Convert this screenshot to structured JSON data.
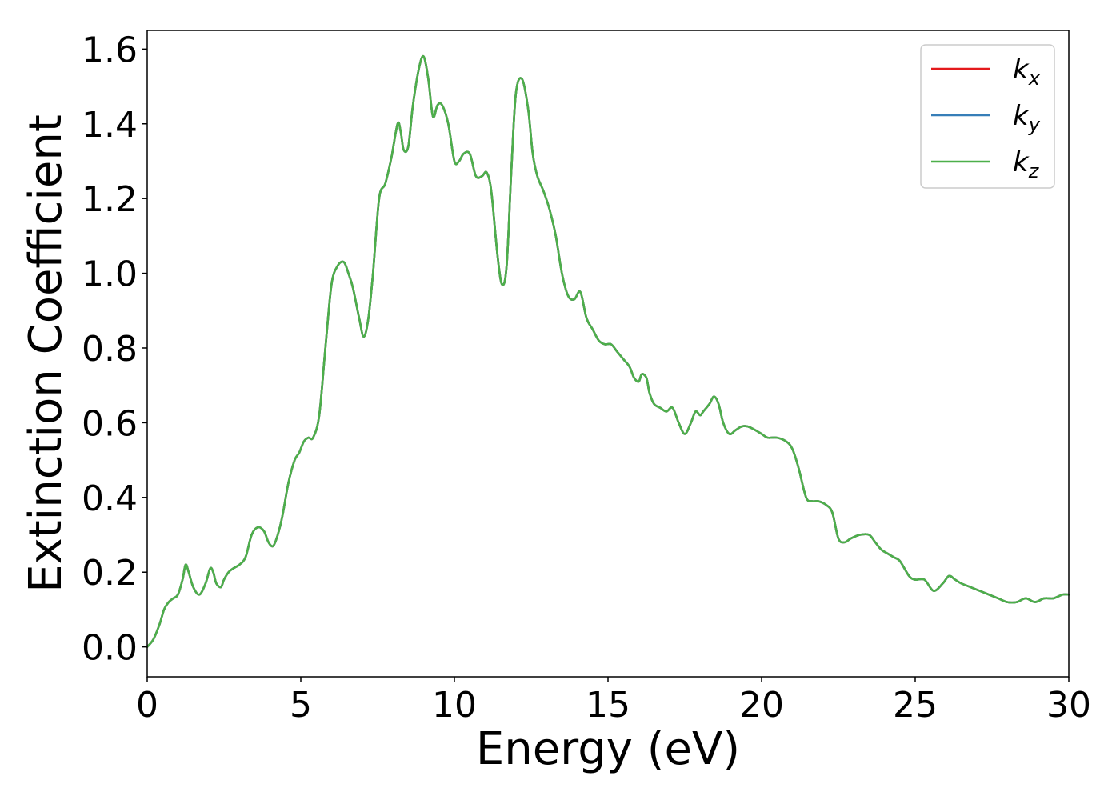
{
  "chart_data": {
    "type": "line",
    "title": "",
    "xlabel": "Energy (eV)",
    "ylabel": "Extinction Coefficient",
    "xlim": [
      0,
      30
    ],
    "ylim": [
      -0.08,
      1.65
    ],
    "xticks": [
      0,
      5,
      10,
      15,
      20,
      25,
      30
    ],
    "xtick_labels": [
      "0",
      "5",
      "10",
      "15",
      "20",
      "25",
      "30"
    ],
    "yticks": [
      0.0,
      0.2,
      0.4,
      0.6,
      0.8,
      1.0,
      1.2,
      1.4,
      1.6
    ],
    "ytick_labels": [
      "0.0",
      "0.2",
      "0.4",
      "0.6",
      "0.8",
      "1.0",
      "1.2",
      "1.4",
      "1.6"
    ],
    "grid": false,
    "legend": {
      "position": "upper-right",
      "entries": [
        {
          "base": "k",
          "sub": "x",
          "color": "#e41a1c"
        },
        {
          "base": "k",
          "sub": "y",
          "color": "#377eb8"
        },
        {
          "base": "k",
          "sub": "z",
          "color": "#4daf4a"
        }
      ]
    },
    "x": [
      0,
      0.2,
      0.4,
      0.55,
      0.7,
      0.85,
      1.0,
      1.15,
      1.25,
      1.35,
      1.5,
      1.7,
      1.9,
      2.05,
      2.15,
      2.25,
      2.4,
      2.5,
      2.65,
      2.8,
      3.0,
      3.2,
      3.4,
      3.6,
      3.8,
      3.95,
      4.1,
      4.25,
      4.4,
      4.6,
      4.8,
      4.95,
      5.1,
      5.25,
      5.4,
      5.6,
      5.8,
      6.0,
      6.2,
      6.4,
      6.55,
      6.7,
      6.9,
      7.05,
      7.2,
      7.35,
      7.55,
      7.75,
      7.95,
      8.15,
      8.25,
      8.35,
      8.5,
      8.65,
      8.85,
      9.0,
      9.15,
      9.3,
      9.45,
      9.6,
      9.8,
      10.0,
      10.15,
      10.3,
      10.5,
      10.7,
      10.9,
      11.05,
      11.2,
      11.4,
      11.55,
      11.7,
      11.85,
      12.0,
      12.2,
      12.4,
      12.55,
      12.7,
      12.9,
      13.1,
      13.3,
      13.5,
      13.7,
      13.9,
      14.1,
      14.3,
      14.5,
      14.7,
      14.9,
      15.1,
      15.3,
      15.5,
      15.7,
      15.85,
      16.0,
      16.1,
      16.25,
      16.35,
      16.5,
      16.7,
      16.9,
      17.1,
      17.3,
      17.5,
      17.7,
      17.85,
      18.0,
      18.1,
      18.3,
      18.45,
      18.6,
      18.75,
      18.95,
      19.15,
      19.35,
      19.55,
      19.8,
      20.0,
      20.2,
      20.5,
      20.8,
      21.0,
      21.2,
      21.45,
      21.65,
      21.85,
      22.1,
      22.3,
      22.5,
      22.7,
      22.9,
      23.2,
      23.5,
      23.7,
      23.9,
      24.1,
      24.3,
      24.5,
      24.8,
      25.0,
      25.3,
      25.6,
      25.9,
      26.1,
      26.3,
      26.5,
      26.8,
      27.1,
      27.4,
      27.7,
      28.0,
      28.3,
      28.6,
      28.9,
      29.2,
      29.5,
      29.8,
      30.0
    ],
    "series": [
      {
        "name": "kx",
        "color": "#e41a1c",
        "values": [
          0.0,
          0.02,
          0.06,
          0.1,
          0.12,
          0.13,
          0.14,
          0.18,
          0.22,
          0.2,
          0.16,
          0.14,
          0.17,
          0.21,
          0.2,
          0.17,
          0.16,
          0.18,
          0.2,
          0.21,
          0.22,
          0.24,
          0.3,
          0.32,
          0.31,
          0.28,
          0.27,
          0.3,
          0.35,
          0.44,
          0.5,
          0.52,
          0.55,
          0.56,
          0.56,
          0.62,
          0.8,
          0.97,
          1.02,
          1.03,
          1.0,
          0.96,
          0.88,
          0.83,
          0.88,
          1.0,
          1.2,
          1.24,
          1.31,
          1.4,
          1.38,
          1.33,
          1.34,
          1.45,
          1.55,
          1.58,
          1.52,
          1.42,
          1.45,
          1.45,
          1.4,
          1.3,
          1.3,
          1.32,
          1.32,
          1.26,
          1.26,
          1.27,
          1.22,
          1.05,
          0.97,
          1.02,
          1.27,
          1.48,
          1.52,
          1.44,
          1.32,
          1.26,
          1.22,
          1.17,
          1.1,
          1.0,
          0.94,
          0.93,
          0.95,
          0.88,
          0.85,
          0.82,
          0.81,
          0.81,
          0.79,
          0.77,
          0.75,
          0.72,
          0.71,
          0.73,
          0.72,
          0.68,
          0.65,
          0.64,
          0.63,
          0.64,
          0.6,
          0.57,
          0.6,
          0.63,
          0.62,
          0.63,
          0.65,
          0.67,
          0.65,
          0.6,
          0.57,
          0.58,
          0.59,
          0.59,
          0.58,
          0.57,
          0.56,
          0.56,
          0.55,
          0.53,
          0.48,
          0.4,
          0.39,
          0.39,
          0.38,
          0.36,
          0.29,
          0.28,
          0.29,
          0.3,
          0.3,
          0.28,
          0.26,
          0.25,
          0.24,
          0.23,
          0.19,
          0.18,
          0.18,
          0.15,
          0.17,
          0.19,
          0.18,
          0.17,
          0.16,
          0.15,
          0.14,
          0.13,
          0.12,
          0.12,
          0.13,
          0.12,
          0.13,
          0.13,
          0.14,
          0.14
        ]
      },
      {
        "name": "ky",
        "color": "#377eb8",
        "values": [
          0.0,
          0.02,
          0.06,
          0.1,
          0.12,
          0.13,
          0.14,
          0.18,
          0.22,
          0.2,
          0.16,
          0.14,
          0.17,
          0.21,
          0.2,
          0.17,
          0.16,
          0.18,
          0.2,
          0.21,
          0.22,
          0.24,
          0.3,
          0.32,
          0.31,
          0.28,
          0.27,
          0.3,
          0.35,
          0.44,
          0.5,
          0.52,
          0.55,
          0.56,
          0.56,
          0.62,
          0.8,
          0.97,
          1.02,
          1.03,
          1.0,
          0.96,
          0.88,
          0.83,
          0.88,
          1.0,
          1.2,
          1.24,
          1.31,
          1.4,
          1.38,
          1.33,
          1.34,
          1.45,
          1.55,
          1.58,
          1.52,
          1.42,
          1.45,
          1.45,
          1.4,
          1.3,
          1.3,
          1.32,
          1.32,
          1.26,
          1.26,
          1.27,
          1.22,
          1.05,
          0.97,
          1.02,
          1.27,
          1.48,
          1.52,
          1.44,
          1.32,
          1.26,
          1.22,
          1.17,
          1.1,
          1.0,
          0.94,
          0.93,
          0.95,
          0.88,
          0.85,
          0.82,
          0.81,
          0.81,
          0.79,
          0.77,
          0.75,
          0.72,
          0.71,
          0.73,
          0.72,
          0.68,
          0.65,
          0.64,
          0.63,
          0.64,
          0.6,
          0.57,
          0.6,
          0.63,
          0.62,
          0.63,
          0.65,
          0.67,
          0.65,
          0.6,
          0.57,
          0.58,
          0.59,
          0.59,
          0.58,
          0.57,
          0.56,
          0.56,
          0.55,
          0.53,
          0.48,
          0.4,
          0.39,
          0.39,
          0.38,
          0.36,
          0.29,
          0.28,
          0.29,
          0.3,
          0.3,
          0.28,
          0.26,
          0.25,
          0.24,
          0.23,
          0.19,
          0.18,
          0.18,
          0.15,
          0.17,
          0.19,
          0.18,
          0.17,
          0.16,
          0.15,
          0.14,
          0.13,
          0.12,
          0.12,
          0.13,
          0.12,
          0.13,
          0.13,
          0.14,
          0.14
        ]
      },
      {
        "name": "kz",
        "color": "#4daf4a",
        "values": [
          0.0,
          0.02,
          0.06,
          0.1,
          0.12,
          0.13,
          0.14,
          0.18,
          0.22,
          0.2,
          0.16,
          0.14,
          0.17,
          0.21,
          0.2,
          0.17,
          0.16,
          0.18,
          0.2,
          0.21,
          0.22,
          0.24,
          0.3,
          0.32,
          0.31,
          0.28,
          0.27,
          0.3,
          0.35,
          0.44,
          0.5,
          0.52,
          0.55,
          0.56,
          0.56,
          0.62,
          0.8,
          0.97,
          1.02,
          1.03,
          1.0,
          0.96,
          0.88,
          0.83,
          0.88,
          1.0,
          1.2,
          1.24,
          1.31,
          1.4,
          1.38,
          1.33,
          1.34,
          1.45,
          1.55,
          1.58,
          1.52,
          1.42,
          1.45,
          1.45,
          1.4,
          1.3,
          1.3,
          1.32,
          1.32,
          1.26,
          1.26,
          1.27,
          1.22,
          1.05,
          0.97,
          1.02,
          1.27,
          1.48,
          1.52,
          1.44,
          1.32,
          1.26,
          1.22,
          1.17,
          1.1,
          1.0,
          0.94,
          0.93,
          0.95,
          0.88,
          0.85,
          0.82,
          0.81,
          0.81,
          0.79,
          0.77,
          0.75,
          0.72,
          0.71,
          0.73,
          0.72,
          0.68,
          0.65,
          0.64,
          0.63,
          0.64,
          0.6,
          0.57,
          0.6,
          0.63,
          0.62,
          0.63,
          0.65,
          0.67,
          0.65,
          0.6,
          0.57,
          0.58,
          0.59,
          0.59,
          0.58,
          0.57,
          0.56,
          0.56,
          0.55,
          0.53,
          0.48,
          0.4,
          0.39,
          0.39,
          0.38,
          0.36,
          0.29,
          0.28,
          0.29,
          0.3,
          0.3,
          0.28,
          0.26,
          0.25,
          0.24,
          0.23,
          0.19,
          0.18,
          0.18,
          0.15,
          0.17,
          0.19,
          0.18,
          0.17,
          0.16,
          0.15,
          0.14,
          0.13,
          0.12,
          0.12,
          0.13,
          0.12,
          0.13,
          0.13,
          0.14,
          0.14
        ]
      }
    ]
  }
}
